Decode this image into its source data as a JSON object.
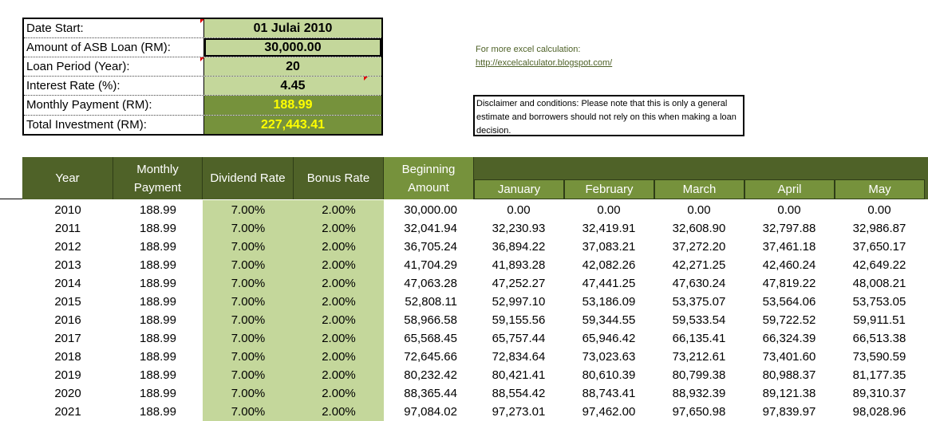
{
  "params": {
    "date_start_label": "Date Start:",
    "date_start_value": "01 Julai 2010",
    "loan_amount_label": "Amount of ASB Loan (RM):",
    "loan_amount_value": "30,000.00",
    "loan_period_label": "Loan Period (Year):",
    "loan_period_value": "20",
    "interest_rate_label": "Interest Rate (%):",
    "interest_rate_value": "4.45",
    "monthly_payment_label": "Monthly Payment (RM):",
    "monthly_payment_value": "188.99",
    "total_investment_label": "Total Investment (RM):",
    "total_investment_value": "227,443.41"
  },
  "info": {
    "label": "For more excel calculation:",
    "link": "http://excelcalculator.blogspot.com/",
    "disclaimer": "Disclaimer and conditions: Please note that this is only a general estimate and borrowers should not rely on this when making a loan decision."
  },
  "table": {
    "headers": {
      "year": "Year",
      "monthly_payment_1": "Monthly",
      "monthly_payment_2": "Payment",
      "dividend_rate": "Dividend Rate",
      "bonus_rate": "Bonus Rate",
      "beginning_amount_1": "Beginning",
      "beginning_amount_2": "Amount",
      "months": [
        "January",
        "February",
        "March",
        "April",
        "May"
      ]
    },
    "rows": [
      {
        "year": "2010",
        "payment": "188.99",
        "dividend": "7.00%",
        "bonus": "2.00%",
        "begin": "30,000.00",
        "months": [
          "0.00",
          "0.00",
          "0.00",
          "0.00",
          "0.00"
        ]
      },
      {
        "year": "2011",
        "payment": "188.99",
        "dividend": "7.00%",
        "bonus": "2.00%",
        "begin": "32,041.94",
        "months": [
          "32,230.93",
          "32,419.91",
          "32,608.90",
          "32,797.88",
          "32,986.87"
        ]
      },
      {
        "year": "2012",
        "payment": "188.99",
        "dividend": "7.00%",
        "bonus": "2.00%",
        "begin": "36,705.24",
        "months": [
          "36,894.22",
          "37,083.21",
          "37,272.20",
          "37,461.18",
          "37,650.17"
        ]
      },
      {
        "year": "2013",
        "payment": "188.99",
        "dividend": "7.00%",
        "bonus": "2.00%",
        "begin": "41,704.29",
        "months": [
          "41,893.28",
          "42,082.26",
          "42,271.25",
          "42,460.24",
          "42,649.22"
        ]
      },
      {
        "year": "2014",
        "payment": "188.99",
        "dividend": "7.00%",
        "bonus": "2.00%",
        "begin": "47,063.28",
        "months": [
          "47,252.27",
          "47,441.25",
          "47,630.24",
          "47,819.22",
          "48,008.21"
        ]
      },
      {
        "year": "2015",
        "payment": "188.99",
        "dividend": "7.00%",
        "bonus": "2.00%",
        "begin": "52,808.11",
        "months": [
          "52,997.10",
          "53,186.09",
          "53,375.07",
          "53,564.06",
          "53,753.05"
        ]
      },
      {
        "year": "2016",
        "payment": "188.99",
        "dividend": "7.00%",
        "bonus": "2.00%",
        "begin": "58,966.58",
        "months": [
          "59,155.56",
          "59,344.55",
          "59,533.54",
          "59,722.52",
          "59,911.51"
        ]
      },
      {
        "year": "2017",
        "payment": "188.99",
        "dividend": "7.00%",
        "bonus": "2.00%",
        "begin": "65,568.45",
        "months": [
          "65,757.44",
          "65,946.42",
          "66,135.41",
          "66,324.39",
          "66,513.38"
        ]
      },
      {
        "year": "2018",
        "payment": "188.99",
        "dividend": "7.00%",
        "bonus": "2.00%",
        "begin": "72,645.66",
        "months": [
          "72,834.64",
          "73,023.63",
          "73,212.61",
          "73,401.60",
          "73,590.59"
        ]
      },
      {
        "year": "2019",
        "payment": "188.99",
        "dividend": "7.00%",
        "bonus": "2.00%",
        "begin": "80,232.42",
        "months": [
          "80,421.41",
          "80,610.39",
          "80,799.38",
          "80,988.37",
          "81,177.35"
        ]
      },
      {
        "year": "2020",
        "payment": "188.99",
        "dividend": "7.00%",
        "bonus": "2.00%",
        "begin": "88,365.44",
        "months": [
          "88,554.42",
          "88,743.41",
          "88,932.39",
          "89,121.38",
          "89,310.37"
        ]
      },
      {
        "year": "2021",
        "payment": "188.99",
        "dividend": "7.00%",
        "bonus": "2.00%",
        "begin": "97,084.02",
        "months": [
          "97,273.01",
          "97,462.00",
          "97,650.98",
          "97,839.97",
          "98,028.96"
        ]
      }
    ]
  },
  "colors": {
    "header_dark": "#4f6228",
    "header_light": "#76923c",
    "input_fill": "#c4d79b",
    "highlight_text": "#ffff00"
  }
}
